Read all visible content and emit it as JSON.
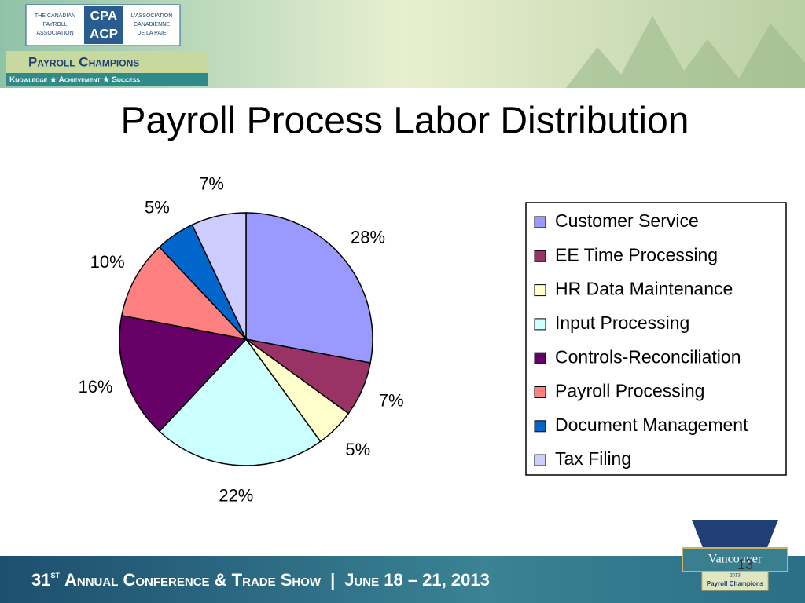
{
  "chart_data": {
    "type": "pie",
    "title": "Payroll Process Labor Distribution",
    "categories": [
      "Customer Service",
      "EE Time Processing",
      "HR Data Maintenance",
      "Input Processing",
      "Controls-Reconciliation",
      "Payroll Processing",
      "Document Management",
      "Tax Filing"
    ],
    "values": [
      28,
      7,
      5,
      22,
      16,
      10,
      5,
      7
    ],
    "value_labels": [
      "28%",
      "7%",
      "5%",
      "22%",
      "16%",
      "10%",
      "5%",
      "7%"
    ],
    "colors": [
      "#9999ff",
      "#993366",
      "#ffffcc",
      "#ccffff",
      "#660066",
      "#ff8080",
      "#0066cc",
      "#ccccff"
    ],
    "legend": "right"
  },
  "header": {
    "logo_left": [
      "THE CANADIAN",
      "PAYROLL",
      "ASSOCIATION"
    ],
    "logo_mid": [
      "CPA",
      "ACP"
    ],
    "logo_right": [
      "L'ASSOCIATION",
      "CANADIENNE",
      "DE LA PAIE"
    ],
    "banner": "Payroll Champions",
    "tagline": "Knowledge ★ Achievement ★ Success"
  },
  "footer": {
    "number": "31",
    "suffix": "st",
    "text": "Annual Conference & Trade Show",
    "separator": "|",
    "dates": "June 18 – 21, 2013",
    "badge_city": "Vancouver",
    "badge_year": "2013",
    "badge_text": "Payroll Champions",
    "page_number": "13"
  }
}
